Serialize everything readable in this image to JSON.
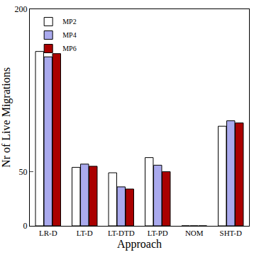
{
  "chart_data": {
    "type": "bar",
    "x_label": "Approach",
    "y_label": "Nr of Live Migrations",
    "categories": [
      "LR-D",
      "LT-D",
      "LT-DTD",
      "LT-PD",
      "NOM",
      "SHT-D"
    ],
    "series": [
      {
        "name": "MP2",
        "color": "#ffffff",
        "values": [
          161,
          54,
          49,
          63,
          0,
          92
        ]
      },
      {
        "name": "MP4",
        "color": "#aaaaee",
        "values": [
          156,
          57,
          36,
          56,
          0,
          97
        ]
      },
      {
        "name": "MP6",
        "color": "#aa0000",
        "values": [
          159,
          55,
          34,
          50,
          0,
          95
        ]
      }
    ],
    "ylim": [
      0,
      200
    ],
    "yticks": [
      0,
      50,
      200
    ],
    "grid": false,
    "legend": "upper left"
  }
}
